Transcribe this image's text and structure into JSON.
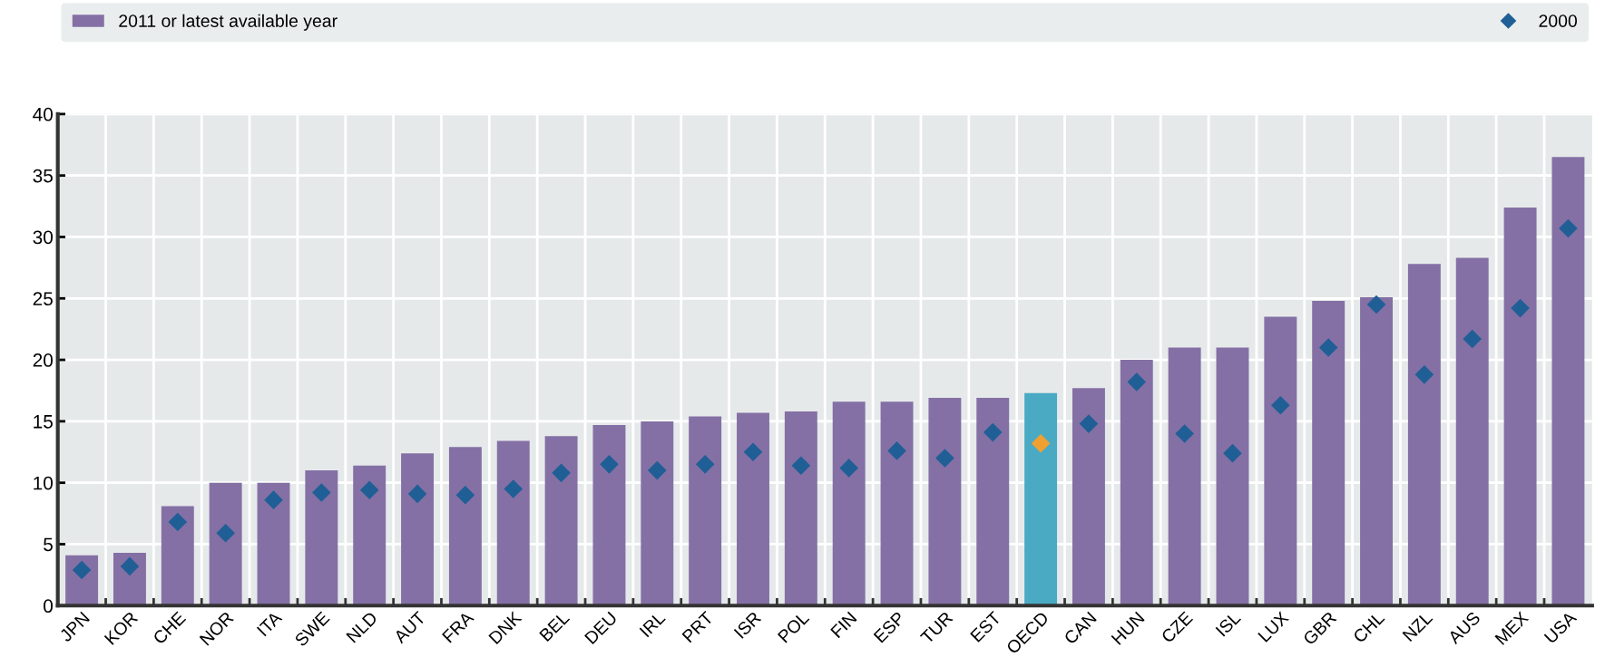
{
  "chart_data": {
    "type": "bar",
    "categories": [
      "JPN",
      "KOR",
      "CHE",
      "NOR",
      "ITA",
      "SWE",
      "NLD",
      "AUT",
      "FRA",
      "DNK",
      "BEL",
      "DEU",
      "IRL",
      "PRT",
      "ISR",
      "POL",
      "FIN",
      "ESP",
      "TUR",
      "EST",
      "OECD",
      "CAN",
      "HUN",
      "CZE",
      "ISL",
      "LUX",
      "GBR",
      "CHL",
      "NZL",
      "AUS",
      "MEX",
      "USA"
    ],
    "series": [
      {
        "name": "2011 or latest available year",
        "color": "#8470a5",
        "colors": [
          "#8470a5",
          "#8470a5",
          "#8470a5",
          "#8470a5",
          "#8470a5",
          "#8470a5",
          "#8470a5",
          "#8470a5",
          "#8470a5",
          "#8470a5",
          "#8470a5",
          "#8470a5",
          "#8470a5",
          "#8470a5",
          "#8470a5",
          "#8470a5",
          "#8470a5",
          "#8470a5",
          "#8470a5",
          "#8470a5",
          "#4aaac4",
          "#8470a5",
          "#8470a5",
          "#8470a5",
          "#8470a5",
          "#8470a5",
          "#8470a5",
          "#8470a5",
          "#8470a5",
          "#8470a5",
          "#8470a5",
          "#8470a5"
        ],
        "values": [
          4.1,
          4.3,
          8.1,
          10.0,
          10.0,
          11.0,
          11.4,
          12.4,
          12.9,
          13.4,
          13.8,
          14.7,
          15.0,
          15.4,
          15.7,
          15.8,
          16.6,
          16.6,
          16.9,
          16.9,
          17.3,
          17.7,
          20.0,
          21.0,
          21.0,
          23.5,
          24.8,
          25.1,
          27.8,
          28.3,
          32.4,
          36.5
        ]
      },
      {
        "name": "2000",
        "type": "scatter",
        "marker": "diamond",
        "color": "#1f5f96",
        "colors": [
          "#1f5f96",
          "#1f5f96",
          "#1f5f96",
          "#1f5f96",
          "#1f5f96",
          "#1f5f96",
          "#1f5f96",
          "#1f5f96",
          "#1f5f96",
          "#1f5f96",
          "#1f5f96",
          "#1f5f96",
          "#1f5f96",
          "#1f5f96",
          "#1f5f96",
          "#1f5f96",
          "#1f5f96",
          "#1f5f96",
          "#1f5f96",
          "#1f5f96",
          "#f0a030",
          "#1f5f96",
          "#1f5f96",
          "#1f5f96",
          "#1f5f96",
          "#1f5f96",
          "#1f5f96",
          "#1f5f96",
          "#1f5f96",
          "#1f5f96",
          "#1f5f96",
          "#1f5f96"
        ],
        "values": [
          2.9,
          3.2,
          6.8,
          5.9,
          8.6,
          9.2,
          9.4,
          9.1,
          9.0,
          9.5,
          10.8,
          11.5,
          11.0,
          11.5,
          12.5,
          11.4,
          11.2,
          12.6,
          12.0,
          14.1,
          13.2,
          14.8,
          18.2,
          14.0,
          12.4,
          16.3,
          21.0,
          24.5,
          18.8,
          21.7,
          24.2,
          30.7
        ]
      }
    ],
    "ylim": [
      0,
      40
    ],
    "yticks": [
      0,
      5,
      10,
      15,
      20,
      25,
      30,
      35,
      40
    ],
    "grid": true,
    "legend": "top"
  }
}
